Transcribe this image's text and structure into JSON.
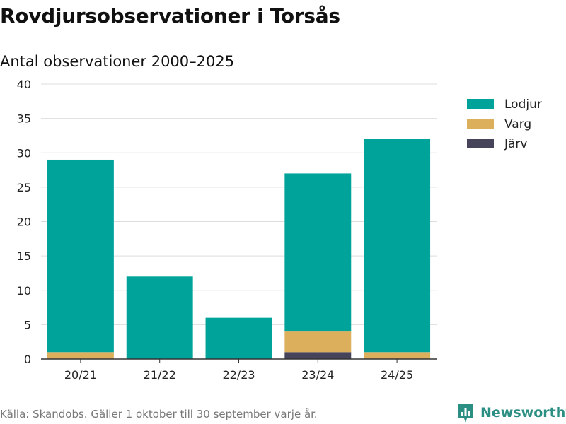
{
  "title": "Rovdjursobservationer i Torsås",
  "subtitle": "Antal observationer 2000–2025",
  "footnote": "Källa: Skandobs. Gäller 1 oktober till 30 september varje år.",
  "brand": {
    "name": "Newsworthy",
    "icon": "newsworthy-logo-icon"
  },
  "chart_data": {
    "type": "bar",
    "stacked": true,
    "title": "Antal observationer 2000–2025",
    "xlabel": "",
    "ylabel": "",
    "ylim": [
      0,
      40
    ],
    "yticks": [
      0,
      5,
      10,
      15,
      20,
      25,
      30,
      35,
      40
    ],
    "grid": true,
    "legend_position": "top-right",
    "categories": [
      "20/21",
      "21/22",
      "22/23",
      "23/24",
      "24/25"
    ],
    "series": [
      {
        "name": "Järv",
        "color": "#45445a",
        "values": [
          0,
          0,
          0,
          1,
          0
        ]
      },
      {
        "name": "Varg",
        "color": "#dcaf5c",
        "values": [
          1,
          0,
          0,
          3,
          1
        ]
      },
      {
        "name": "Lodjur",
        "color": "#00a39a",
        "values": [
          28,
          12,
          6,
          23,
          31
        ]
      }
    ],
    "legend_order": [
      "Lodjur",
      "Varg",
      "Järv"
    ]
  }
}
